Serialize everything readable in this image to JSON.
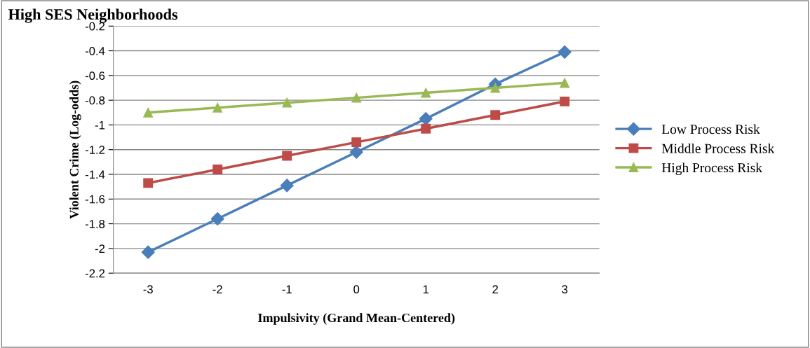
{
  "chart_data": {
    "type": "line",
    "title": "High SES Neighborhoods",
    "xlabel": "Impulsivity (Grand Mean-Centered)",
    "ylabel": "Violent Crime (Log-odds)",
    "categories": [
      "-3",
      "-2",
      "-1",
      "0",
      "1",
      "2",
      "3"
    ],
    "series": [
      {
        "name": "Low Process Risk",
        "color": "#4a7ebb",
        "marker": "diamond",
        "values": [
          -2.03,
          -1.76,
          -1.49,
          -1.22,
          -0.95,
          -0.67,
          -0.41
        ]
      },
      {
        "name": "Middle Process Risk",
        "color": "#be4b48",
        "marker": "square",
        "values": [
          -1.47,
          -1.36,
          -1.25,
          -1.14,
          -1.03,
          -0.92,
          -0.81
        ]
      },
      {
        "name": "High Process Risk",
        "color": "#98b954",
        "marker": "triangle",
        "values": [
          -0.9,
          -0.86,
          -0.82,
          -0.78,
          -0.74,
          -0.7,
          -0.66
        ]
      }
    ],
    "ylim": [
      -2.2,
      -0.2
    ],
    "yticks": [
      -2.2,
      -2,
      -1.8,
      -1.6,
      -1.4,
      -1.2,
      -1,
      -0.8,
      -0.6,
      -0.4,
      -0.2
    ],
    "grid": "y",
    "legend": "right",
    "line_style": "solid"
  }
}
